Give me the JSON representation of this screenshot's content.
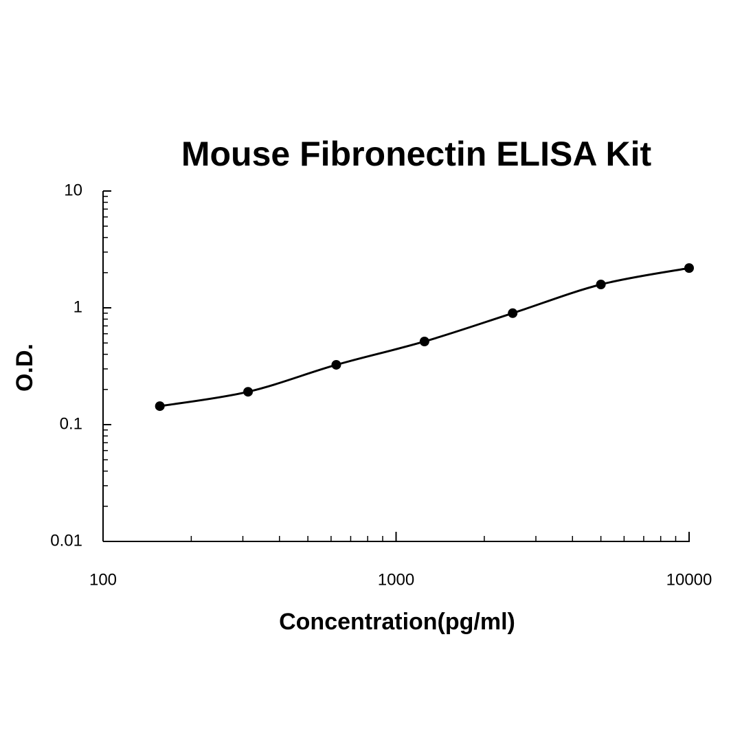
{
  "chart_data": {
    "type": "scatter",
    "title": "Mouse Fibronectin ELISA Kit",
    "x_label": "Concentration(pg/ml)",
    "y_label": "O.D.",
    "x": [
      156.25,
      312.5,
      625,
      1250,
      2500,
      5000,
      10000
    ],
    "values": [
      0.144,
      0.191,
      0.325,
      0.515,
      0.9,
      1.585,
      2.19
    ],
    "color": "#000000",
    "x_log": true,
    "y_log": true,
    "xlim": [
      100,
      10000
    ],
    "xticks": [
      100,
      1000,
      10000
    ],
    "xminorticks": [
      200,
      300,
      400,
      500,
      600,
      700,
      800,
      900,
      2000,
      3000,
      4000,
      5000,
      6000,
      7000,
      8000,
      9000
    ],
    "ylim": [
      0.01,
      10
    ],
    "yticks": [
      0.01,
      0.1,
      1,
      10
    ],
    "yminorticks": [
      0.02,
      0.03,
      0.04,
      0.05,
      0.06,
      0.07,
      0.08,
      0.09,
      0.2,
      0.3,
      0.4,
      0.5,
      0.6,
      0.7,
      0.8,
      0.9,
      2,
      3,
      4,
      5,
      6,
      7,
      8,
      9
    ],
    "grid": false
  }
}
